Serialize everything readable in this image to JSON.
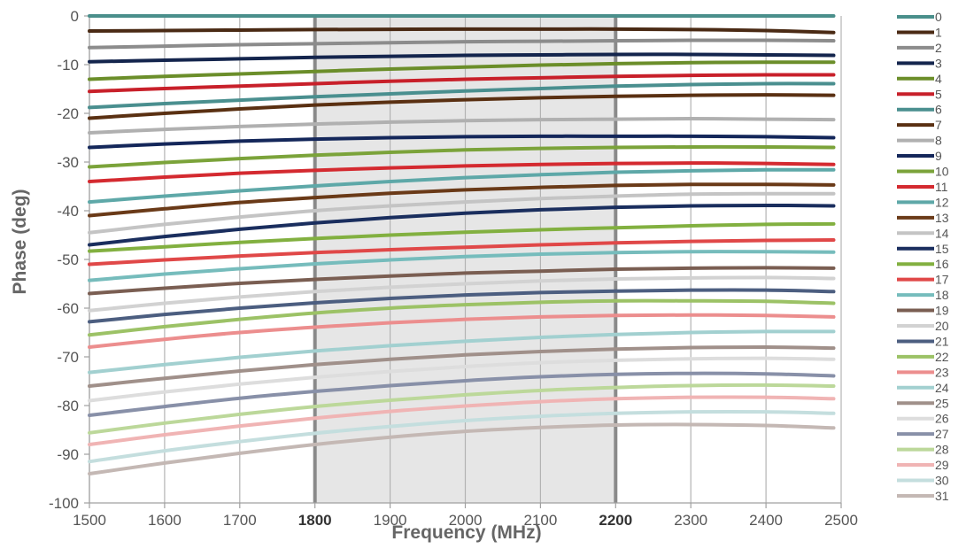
{
  "chart_data": {
    "type": "line",
    "xlabel": "Frequency (MHz)",
    "ylabel": "Phase (deg)",
    "xlim": [
      1500,
      2500
    ],
    "ylim": [
      -100,
      0
    ],
    "x_ticks": [
      "1500",
      "1600",
      "1700",
      "1800",
      "1900",
      "2000",
      "2100",
      "2200",
      "2300",
      "2400",
      "2500"
    ],
    "y_ticks": [
      "0",
      "-10",
      "-20",
      "-30",
      "-40",
      "-50",
      "-60",
      "-70",
      "-80",
      "-90",
      "-100"
    ],
    "bold_x_ticks": [
      "1800",
      "2200"
    ],
    "band": [
      1800,
      2200
    ],
    "grid": true,
    "legend_position": "right",
    "x": [
      1500,
      1600,
      1700,
      1800,
      1900,
      2000,
      2100,
      2200,
      2300,
      2400,
      2490
    ],
    "series": [
      {
        "name": "0",
        "color": "#4a8f8b",
        "values": [
          0,
          0,
          0,
          0,
          0,
          0,
          0,
          0,
          0,
          0,
          0
        ]
      },
      {
        "name": "1",
        "color": "#4a2a14",
        "values": [
          -3.1,
          -3.0,
          -2.9,
          -2.8,
          -2.75,
          -2.7,
          -2.7,
          -2.7,
          -2.8,
          -3.0,
          -3.4
        ]
      },
      {
        "name": "2",
        "color": "#8c8c8c",
        "values": [
          -6.5,
          -6.2,
          -5.9,
          -5.7,
          -5.5,
          -5.3,
          -5.2,
          -5.1,
          -5.0,
          -5.0,
          -5.1
        ]
      },
      {
        "name": "3",
        "color": "#14254d",
        "values": [
          -9.4,
          -9.1,
          -8.8,
          -8.5,
          -8.3,
          -8.1,
          -8.0,
          -7.9,
          -7.9,
          -8.0,
          -8.1
        ]
      },
      {
        "name": "4",
        "color": "#6b8e2a",
        "values": [
          -13.0,
          -12.4,
          -11.9,
          -11.4,
          -10.9,
          -10.5,
          -10.1,
          -9.8,
          -9.6,
          -9.5,
          -9.5
        ]
      },
      {
        "name": "5",
        "color": "#c8202a",
        "values": [
          -15.5,
          -14.9,
          -14.4,
          -13.9,
          -13.4,
          -13.0,
          -12.7,
          -12.4,
          -12.2,
          -12.1,
          -12.1
        ]
      },
      {
        "name": "6",
        "color": "#4a8f8f",
        "values": [
          -18.8,
          -18.0,
          -17.3,
          -16.6,
          -16.0,
          -15.4,
          -14.9,
          -14.4,
          -14.1,
          -13.9,
          -13.9
        ]
      },
      {
        "name": "7",
        "color": "#5a3012",
        "values": [
          -21.0,
          -20.0,
          -19.1,
          -18.3,
          -17.7,
          -17.2,
          -16.8,
          -16.5,
          -16.3,
          -16.2,
          -16.3
        ]
      },
      {
        "name": "8",
        "color": "#b0b0b0",
        "values": [
          -24.0,
          -23.3,
          -22.7,
          -22.2,
          -21.8,
          -21.5,
          -21.3,
          -21.2,
          -21.1,
          -21.2,
          -21.3
        ]
      },
      {
        "name": "9",
        "color": "#14275a",
        "values": [
          -27.0,
          -26.3,
          -25.7,
          -25.3,
          -25.0,
          -24.8,
          -24.7,
          -24.7,
          -24.7,
          -24.8,
          -25.0
        ]
      },
      {
        "name": "10",
        "color": "#7ba33a",
        "values": [
          -31.0,
          -30.1,
          -29.3,
          -28.6,
          -28.0,
          -27.5,
          -27.2,
          -27.0,
          -26.9,
          -26.9,
          -27.0
        ]
      },
      {
        "name": "11",
        "color": "#d42a30",
        "values": [
          -34.0,
          -33.1,
          -32.3,
          -31.7,
          -31.2,
          -30.8,
          -30.5,
          -30.3,
          -30.2,
          -30.3,
          -30.5
        ]
      },
      {
        "name": "12",
        "color": "#5ea8a8",
        "values": [
          -38.2,
          -37.0,
          -35.9,
          -34.9,
          -34.0,
          -33.2,
          -32.6,
          -32.1,
          -31.8,
          -31.6,
          -31.6
        ]
      },
      {
        "name": "13",
        "color": "#6a3a18",
        "values": [
          -41.0,
          -39.6,
          -38.3,
          -37.3,
          -36.4,
          -35.7,
          -35.2,
          -34.8,
          -34.6,
          -34.6,
          -34.7
        ]
      },
      {
        "name": "14",
        "color": "#c4c4c4",
        "values": [
          -44.5,
          -42.8,
          -41.3,
          -40.0,
          -39.0,
          -38.2,
          -37.5,
          -37.0,
          -36.6,
          -36.5,
          -36.5
        ]
      },
      {
        "name": "15",
        "color": "#1a2e5e",
        "values": [
          -47.0,
          -45.3,
          -43.8,
          -42.5,
          -41.4,
          -40.5,
          -39.8,
          -39.3,
          -39.0,
          -38.9,
          -39.0
        ]
      },
      {
        "name": "16",
        "color": "#82b040",
        "values": [
          -48.3,
          -47.4,
          -46.5,
          -45.7,
          -45.0,
          -44.4,
          -43.9,
          -43.5,
          -43.1,
          -42.8,
          -42.7
        ]
      },
      {
        "name": "17",
        "color": "#e04848",
        "values": [
          -51.0,
          -50.1,
          -49.3,
          -48.6,
          -48.0,
          -47.5,
          -47.0,
          -46.6,
          -46.3,
          -46.1,
          -46.0
        ]
      },
      {
        "name": "18",
        "color": "#76bcbc",
        "values": [
          -54.3,
          -53.0,
          -51.9,
          -50.9,
          -50.1,
          -49.4,
          -48.9,
          -48.6,
          -48.4,
          -48.4,
          -48.5
        ]
      },
      {
        "name": "19",
        "color": "#7a5e52",
        "values": [
          -57.0,
          -55.9,
          -54.9,
          -54.1,
          -53.4,
          -52.8,
          -52.4,
          -52.0,
          -51.8,
          -51.7,
          -51.8
        ]
      },
      {
        "name": "20",
        "color": "#d2d2d2",
        "values": [
          -60.5,
          -59.0,
          -57.7,
          -56.6,
          -55.7,
          -55.0,
          -54.4,
          -54.0,
          -53.8,
          -53.7,
          -53.9
        ]
      },
      {
        "name": "21",
        "color": "#4c5e80",
        "values": [
          -62.8,
          -61.3,
          -60.0,
          -58.9,
          -58.0,
          -57.3,
          -56.8,
          -56.5,
          -56.3,
          -56.3,
          -56.6
        ]
      },
      {
        "name": "22",
        "color": "#9cc266",
        "values": [
          -65.5,
          -63.8,
          -62.3,
          -61.0,
          -60.0,
          -59.3,
          -58.8,
          -58.5,
          -58.5,
          -58.6,
          -59.0
        ]
      },
      {
        "name": "23",
        "color": "#ec8e8e",
        "values": [
          -68.0,
          -66.4,
          -65.0,
          -63.9,
          -63.0,
          -62.3,
          -61.8,
          -61.5,
          -61.4,
          -61.5,
          -61.8
        ]
      },
      {
        "name": "24",
        "color": "#a2d0d0",
        "values": [
          -73.2,
          -71.6,
          -70.1,
          -68.8,
          -67.7,
          -66.8,
          -66.0,
          -65.4,
          -65.0,
          -64.8,
          -64.8
        ]
      },
      {
        "name": "25",
        "color": "#a0908a",
        "values": [
          -76.0,
          -74.4,
          -72.9,
          -71.6,
          -70.5,
          -69.6,
          -68.9,
          -68.4,
          -68.1,
          -68.0,
          -68.2
        ]
      },
      {
        "name": "26",
        "color": "#dddddd",
        "values": [
          -79.0,
          -77.2,
          -75.6,
          -74.2,
          -73.0,
          -72.0,
          -71.2,
          -70.7,
          -70.4,
          -70.3,
          -70.5
        ]
      },
      {
        "name": "27",
        "color": "#8890a8",
        "values": [
          -82.0,
          -80.2,
          -78.5,
          -77.1,
          -75.9,
          -74.9,
          -74.1,
          -73.6,
          -73.4,
          -73.5,
          -73.9
        ]
      },
      {
        "name": "28",
        "color": "#bcd89a",
        "values": [
          -85.6,
          -83.6,
          -81.8,
          -80.2,
          -78.9,
          -77.8,
          -76.9,
          -76.3,
          -75.9,
          -75.8,
          -76.0
        ]
      },
      {
        "name": "29",
        "color": "#f0b4b4",
        "values": [
          -88.0,
          -86.0,
          -84.2,
          -82.6,
          -81.2,
          -80.1,
          -79.2,
          -78.6,
          -78.3,
          -78.3,
          -78.6
        ]
      },
      {
        "name": "30",
        "color": "#c4dede",
        "values": [
          -91.5,
          -89.3,
          -87.4,
          -85.7,
          -84.3,
          -83.1,
          -82.2,
          -81.6,
          -81.3,
          -81.3,
          -81.6
        ]
      },
      {
        "name": "31",
        "color": "#c4b8b4",
        "values": [
          -94.0,
          -91.8,
          -89.8,
          -88.0,
          -86.5,
          -85.3,
          -84.5,
          -84.0,
          -83.9,
          -84.1,
          -84.6
        ]
      }
    ]
  }
}
